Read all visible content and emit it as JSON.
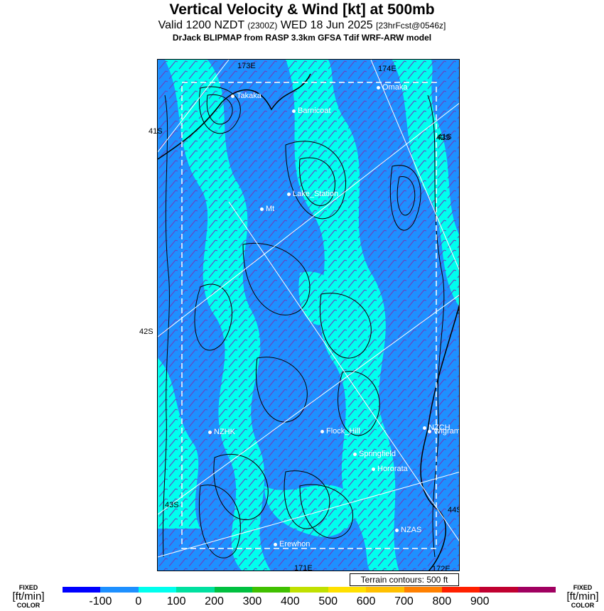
{
  "header": {
    "title": "Vertical Velocity & Wind [kt] at 500mb",
    "subtitle_main": "Valid 1200 NZDT",
    "subtitle_utc": "(2300Z)",
    "subtitle_date": "WED 18 Jun 2025",
    "subtitle_fcst": "[23hrFcst@0546z]",
    "model_line": "DrJack BLIPMAP from RASP 3.3km GFSA Tdif WRF-ARW model"
  },
  "map": {
    "lon_labels": [
      "173E",
      "174E",
      "171E",
      "172E"
    ],
    "lat_labels": [
      "41S",
      "42S",
      "43S",
      "42S",
      "43S",
      "44S"
    ],
    "places": [
      {
        "name": "Takaka"
      },
      {
        "name": "Omaka"
      },
      {
        "name": "Barnicoat"
      },
      {
        "name": "Lake_Station"
      },
      {
        "name": "Mt"
      },
      {
        "name": "NZHK"
      },
      {
        "name": "Flock_Hill"
      },
      {
        "name": "NZCH"
      },
      {
        "name": "Wigram"
      },
      {
        "name": "Springfield"
      },
      {
        "name": "Hororata"
      },
      {
        "name": "NZAS"
      },
      {
        "name": "Erewhon"
      }
    ],
    "colors": {
      "ocean": "#1e90ff",
      "low_positive": "#00ffee",
      "contour": "#000000"
    }
  },
  "terrain_note": "Terrain contours: 500 ft",
  "legend": {
    "left_top": "FIXED",
    "left_mid": "[ft/min]",
    "left_bottom": "COLOR",
    "right_top": "FIXED",
    "right_mid": "[ft/min]",
    "right_bottom": "COLOR",
    "ticks": [
      "-100",
      "0",
      "100",
      "200",
      "300",
      "400",
      "500",
      "600",
      "700",
      "800",
      "900"
    ],
    "colors": [
      "#0000ff",
      "#1e90ff",
      "#00ffee",
      "#00e0a0",
      "#00c040",
      "#40c000",
      "#c0e000",
      "#ffe000",
      "#ffc000",
      "#ff8000",
      "#ff2000",
      "#c00030",
      "#a00060"
    ]
  }
}
